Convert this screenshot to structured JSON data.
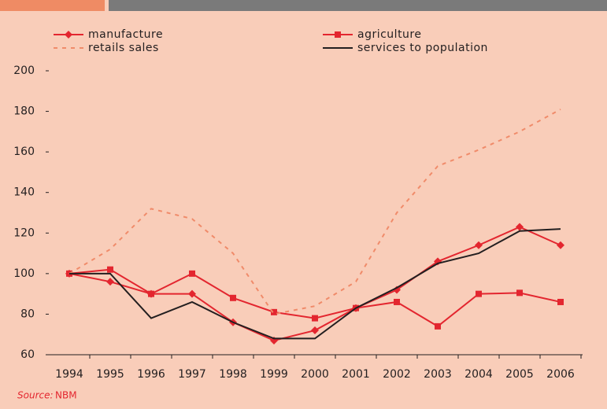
{
  "chart_data": {
    "type": "line",
    "categories": [
      "1994",
      "1995",
      "1996",
      "1997",
      "1998",
      "1999",
      "2000",
      "2001",
      "2002",
      "2003",
      "2004",
      "2005",
      "2006"
    ],
    "series": [
      {
        "name": "manufacture",
        "color": "#e3262f",
        "marker": "diamond",
        "dashed": false,
        "values": [
          100,
          96,
          90,
          90,
          76,
          67,
          72,
          83,
          92,
          106,
          114,
          123,
          114
        ]
      },
      {
        "name": "agriculture",
        "color": "#e3262f",
        "marker": "square",
        "dashed": false,
        "values": [
          100,
          102,
          90,
          100,
          88,
          81,
          78,
          83,
          86,
          74,
          90,
          90.5,
          86
        ]
      },
      {
        "name": "retails sales",
        "color": "#f08b6a",
        "marker": "none",
        "dashed": true,
        "values": [
          100,
          112,
          132,
          127,
          110,
          80,
          84,
          96,
          130,
          153,
          161,
          170,
          181
        ]
      },
      {
        "name": "services to population",
        "color": "#231f20",
        "marker": "none",
        "dashed": false,
        "values": [
          100,
          100,
          78,
          86,
          76,
          68,
          68,
          83,
          93,
          105,
          110,
          121,
          122
        ]
      }
    ],
    "ylim": [
      60,
      200
    ],
    "yticks": [
      60,
      80,
      100,
      120,
      140,
      160,
      180,
      200
    ],
    "source_label": "Source:",
    "source": "NBM"
  }
}
